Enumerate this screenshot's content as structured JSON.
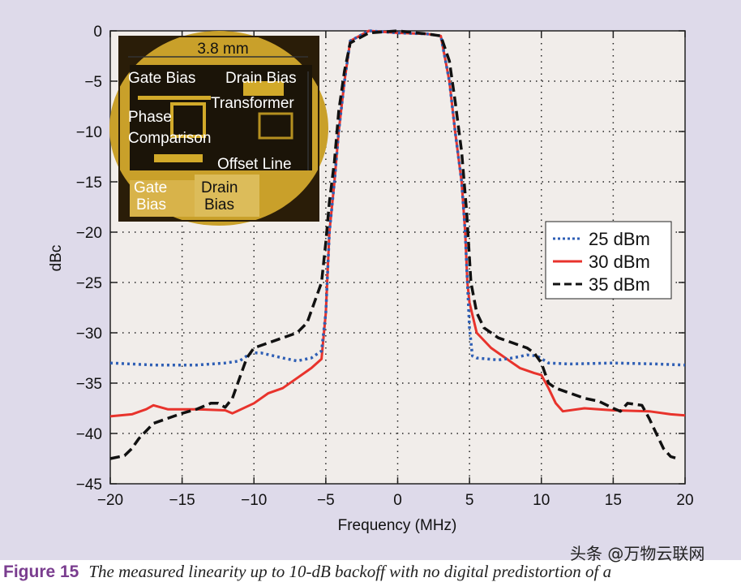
{
  "chart_data": {
    "type": "line",
    "xlabel": "Frequency (MHz)",
    "ylabel": "dBc",
    "xlim": [
      -20,
      20
    ],
    "ylim": [
      -45,
      0
    ],
    "xticks": [
      "−20",
      "−15",
      "−10",
      "−5",
      "0",
      "5",
      "10",
      "15",
      "20"
    ],
    "yticks": [
      "0",
      "−5",
      "−10",
      "−15",
      "−20",
      "−25",
      "−30",
      "−35",
      "−40",
      "−45"
    ],
    "grid": true,
    "legend_placement": "right",
    "series": [
      {
        "name": "25 dBm",
        "color": "#2f5fb5",
        "style": "dotted",
        "x": [
          -20,
          -17,
          -14,
          -12,
          -11,
          -10.2,
          -9.5,
          -8,
          -7,
          -6,
          -5.3,
          -5.0,
          -4.75,
          -4.4,
          -4.1,
          -3.7,
          -3.3,
          -2,
          0,
          2,
          3,
          3.6,
          4.0,
          4.45,
          4.7,
          4.85,
          5.0,
          5.2,
          5.5,
          7,
          8,
          9,
          9.7,
          10.5,
          12,
          15,
          18,
          20
        ],
        "y": [
          -33,
          -33.2,
          -33.2,
          -33,
          -32.8,
          -32,
          -32,
          -32.5,
          -32.8,
          -32.5,
          -31.8,
          -28,
          -20,
          -15,
          -10,
          -5,
          -1,
          0,
          -0.2,
          -0.3,
          -0.5,
          -5,
          -10,
          -15,
          -20,
          -25,
          -29.5,
          -32.3,
          -32.5,
          -32.7,
          -32.5,
          -32.2,
          -32.3,
          -33,
          -33.1,
          -33,
          -33.1,
          -33.2
        ]
      },
      {
        "name": "30 dBm",
        "color": "#e8332c",
        "style": "solid",
        "x": [
          -20,
          -18.5,
          -17.5,
          -17,
          -16,
          -14,
          -12,
          -11.5,
          -10,
          -9,
          -8,
          -7,
          -6,
          -5.3,
          -5.0,
          -4.75,
          -4.4,
          -4.1,
          -3.7,
          -3.3,
          -2,
          0,
          2,
          3,
          3.6,
          4.0,
          4.45,
          4.7,
          4.85,
          5.0,
          5.5,
          6.5,
          7.5,
          8.5,
          9.5,
          10,
          10.5,
          11,
          11.5,
          13,
          15,
          17.5,
          19,
          20
        ],
        "y": [
          -38.3,
          -38.1,
          -37.6,
          -37.2,
          -37.6,
          -37.6,
          -37.7,
          -38,
          -37,
          -36,
          -35.5,
          -34.5,
          -33.5,
          -32.6,
          -28,
          -20,
          -15,
          -10,
          -5,
          -1,
          0,
          -0.2,
          -0.3,
          -0.5,
          -5,
          -10,
          -15,
          -20,
          -25,
          -27,
          -30,
          -31.5,
          -32.5,
          -33.5,
          -34,
          -34.2,
          -35.5,
          -37,
          -37.8,
          -37.5,
          -37.7,
          -37.8,
          -38.1,
          -38.2
        ]
      },
      {
        "name": "35 dBm",
        "color": "#111111",
        "style": "dashed",
        "x": [
          -20,
          -19,
          -18.5,
          -18,
          -17,
          -16,
          -15,
          -14,
          -13,
          -12.5,
          -12,
          -11.5,
          -11,
          -10.5,
          -10,
          -9,
          -8,
          -7,
          -6.3,
          -5.8,
          -5.3,
          -5.0,
          -4.75,
          -4.4,
          -4.1,
          -3.7,
          -3.3,
          -2,
          0,
          2,
          3,
          3.6,
          4.0,
          4.45,
          4.8,
          5.1,
          5.5,
          6,
          7,
          8,
          9,
          9.5,
          10,
          10.5,
          11,
          12,
          13,
          14,
          15,
          15.5,
          16,
          17,
          17.5,
          18,
          18.5,
          19,
          19.5
        ],
        "y": [
          -42.5,
          -42.2,
          -41.5,
          -40.5,
          -39,
          -38.5,
          -38,
          -37.6,
          -37,
          -37,
          -37.4,
          -36.5,
          -34.5,
          -32.5,
          -31.5,
          -31,
          -30.5,
          -30,
          -29,
          -27,
          -25,
          -21,
          -17,
          -13,
          -8,
          -4,
          -1.2,
          -0.2,
          0,
          -0.3,
          -0.5,
          -3,
          -7,
          -12,
          -18,
          -25,
          -28,
          -29.5,
          -30.5,
          -31,
          -31.5,
          -32,
          -33,
          -35,
          -35.5,
          -36,
          -36.5,
          -36.8,
          -37.5,
          -37.8,
          -37,
          -37.2,
          -38.5,
          -40,
          -41.5,
          -42.3,
          -42.5
        ]
      }
    ]
  },
  "inset": {
    "scale_label": "3.8 mm",
    "labels": [
      "Gate Bias",
      "Drain Bias",
      "Transformer",
      "Phase",
      "Comparison",
      "Offset Line",
      "Gate",
      "Bias",
      "Drain",
      "Bias"
    ]
  },
  "watermark": "头条 @万物云联网",
  "caption": {
    "figure": "Figure 15",
    "text": "The measured linearity up to 10-dB backoff with no digital predistortion of a"
  }
}
